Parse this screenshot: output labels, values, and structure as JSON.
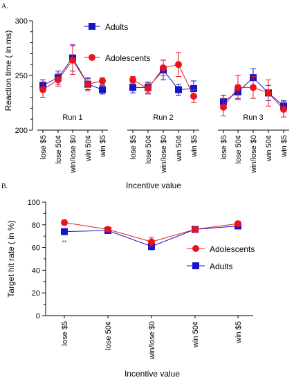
{
  "colors": {
    "adolescents": "#e8141b",
    "adults": "#1414c8",
    "axis": "#000000"
  },
  "chart_data": [
    {
      "type": "line",
      "panel_label": "A.",
      "xlabel": "Incentive value",
      "ylabel": "Reaction time (  in ms)",
      "ylim": [
        200,
        300
      ],
      "yticks": [
        200,
        250,
        300
      ],
      "grid": false,
      "legend_position": "top-center",
      "categories": [
        "lose $5",
        "lose 50¢",
        "win/lose $0",
        "win 50¢",
        "win $5"
      ],
      "runs": [
        {
          "label": "Run 1"
        },
        {
          "label": "Run 2"
        },
        {
          "label": "Run 3"
        }
      ],
      "series": [
        {
          "name": "Adults",
          "marker": "square",
          "runs": [
            {
              "values": [
                241,
                248,
                266,
                242,
                237
              ],
              "errors": [
                5,
                6,
                12,
                5,
                4
              ]
            },
            {
              "values": [
                239,
                239,
                255,
                237,
                238
              ],
              "errors": [
                5,
                5,
                9,
                5,
                7
              ]
            },
            {
              "values": [
                226,
                235,
                248,
                234,
                222
              ],
              "errors": [
                6,
                6,
                8,
                7,
                5
              ]
            }
          ]
        },
        {
          "name": "Adolescents",
          "marker": "circle",
          "runs": [
            {
              "values": [
                237,
                246,
                264,
                242,
                245
              ],
              "errors": [
                7,
                6,
                13,
                6,
                3
              ]
            },
            {
              "values": [
                246,
                238,
                257,
                260,
                231
              ],
              "errors": [
                3,
                5,
                7,
                11,
                6
              ]
            },
            {
              "values": [
                221,
                239,
                239,
                234,
                219
              ],
              "errors": [
                8,
                11,
                10,
                12,
                7
              ]
            }
          ]
        }
      ]
    },
    {
      "type": "line",
      "panel_label": "B.",
      "xlabel": "Incentive value",
      "ylabel": "Target hit rate (  in %)",
      "ylim": [
        0,
        100
      ],
      "yticks": [
        0,
        20,
        40,
        60,
        80,
        100
      ],
      "grid": false,
      "legend_position": "right",
      "categories": [
        "lose $5",
        "lose 50¢",
        "win/lose $0",
        "win 50¢",
        "win $5"
      ],
      "annotations": [
        {
          "text": "**",
          "category": "lose $5"
        }
      ],
      "series": [
        {
          "name": "Adolescents",
          "marker": "circle",
          "values": [
            82,
            76,
            65,
            76,
            81
          ],
          "errors": [
            2,
            2,
            4,
            2,
            2
          ]
        },
        {
          "name": "Adults",
          "marker": "square",
          "values": [
            74,
            75,
            61,
            76,
            79
          ],
          "errors": [
            1,
            2,
            3,
            2,
            2
          ]
        }
      ]
    }
  ]
}
